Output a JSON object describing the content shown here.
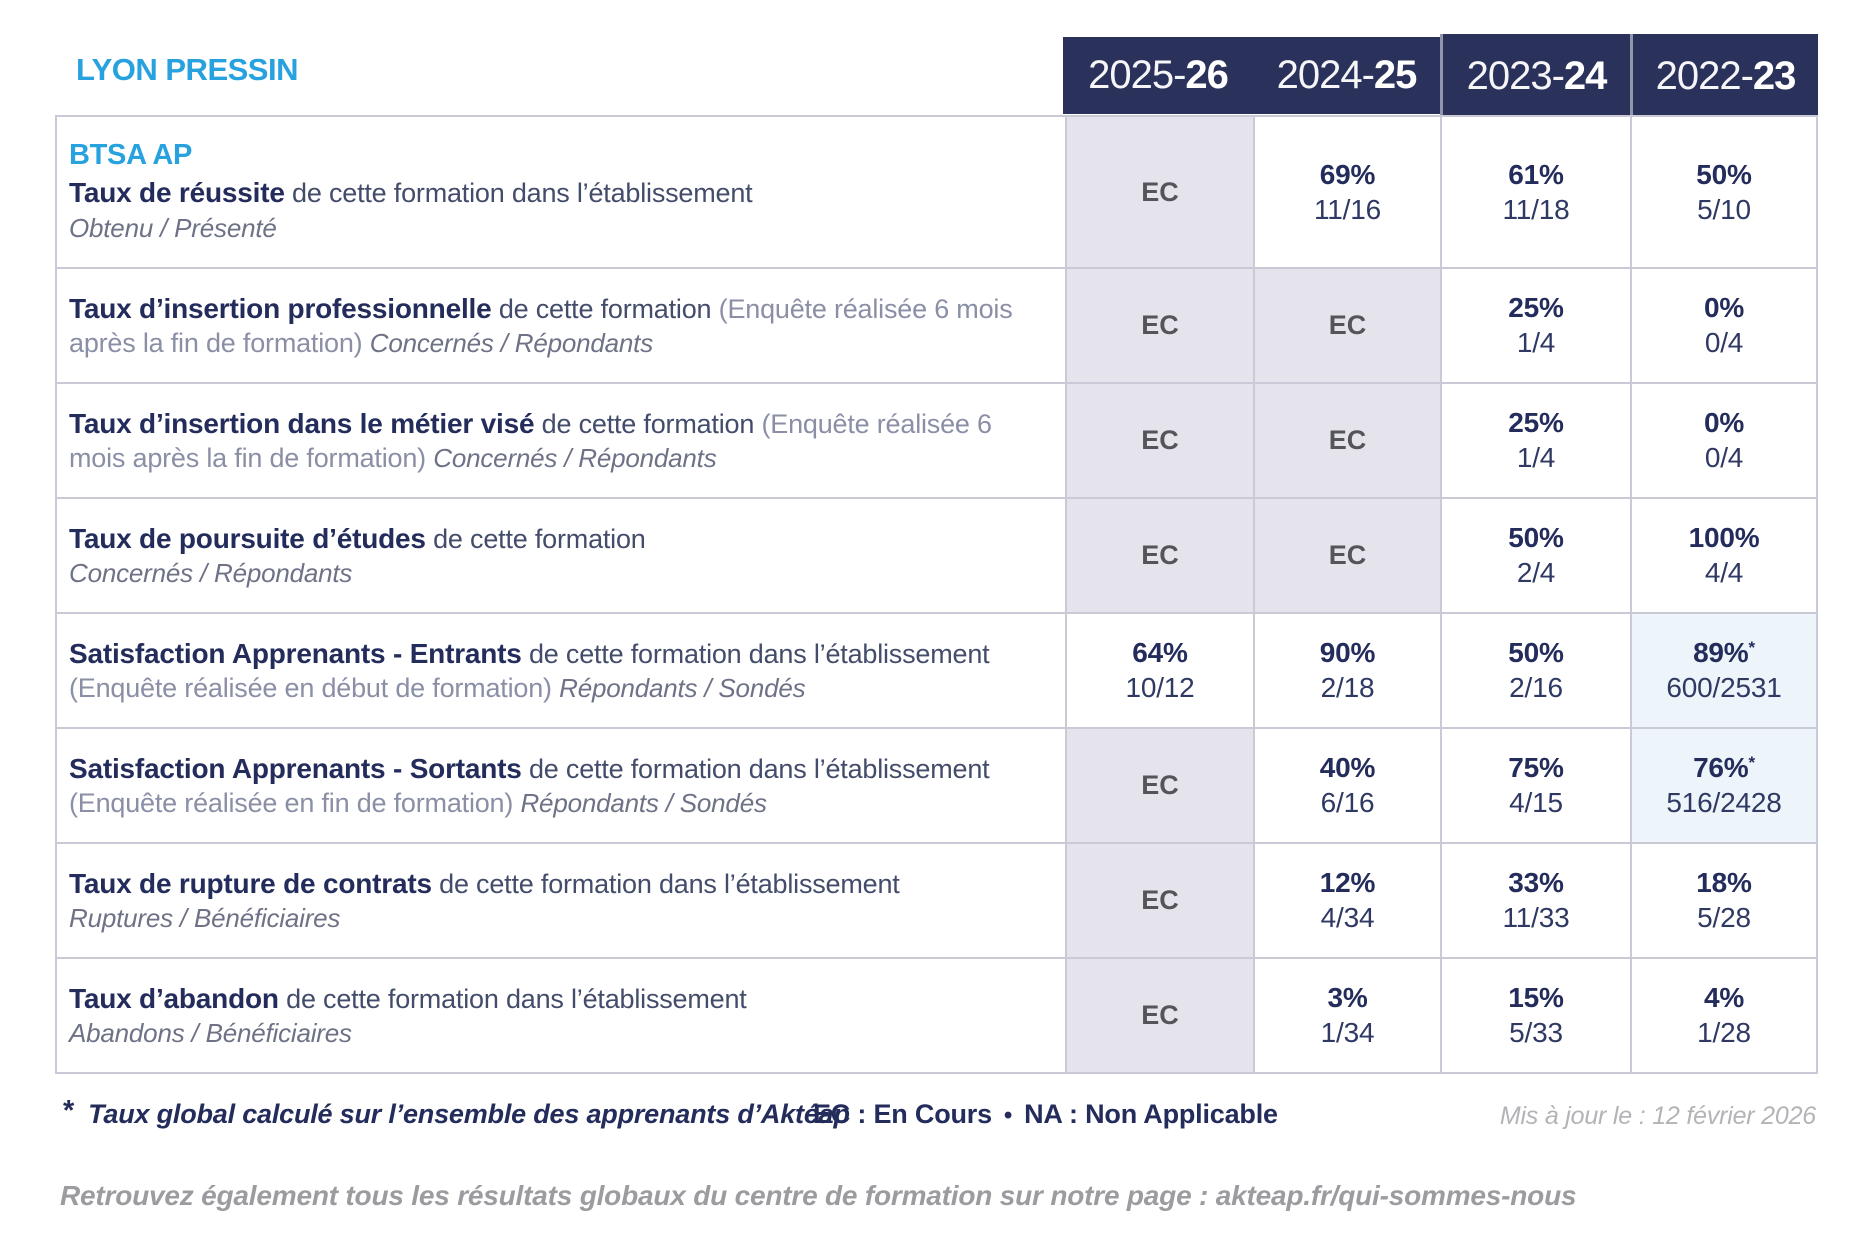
{
  "site": "LYON PRESSIN",
  "columns": [
    {
      "start": "2025-",
      "end": "26"
    },
    {
      "start": "2024-",
      "end": "25"
    },
    {
      "start": "2023-",
      "end": "24"
    },
    {
      "start": "2022-",
      "end": "23"
    }
  ],
  "rows": [
    {
      "program": "BTSA AP",
      "segments": [
        {
          "t": "Taux de réussite",
          "s": "title"
        },
        {
          "t": "de cette formation dans l’établissement",
          "s": "normal"
        },
        {
          "t": "Obtenu / Présenté",
          "s": "italic",
          "br": true
        }
      ],
      "values": [
        {
          "ec": "EC"
        },
        {
          "pct": "69%",
          "frac": "11/16"
        },
        {
          "pct": "61%",
          "frac": "11/18"
        },
        {
          "pct": "50%",
          "frac": "5/10"
        }
      ]
    },
    {
      "segments": [
        {
          "t": "Taux d’insertion professionnelle",
          "s": "title"
        },
        {
          "t": "de cette formation",
          "s": "normal"
        },
        {
          "t": "(Enquête réalisée 6 mois après la fin de formation)",
          "s": "paren"
        },
        {
          "t": "Concernés / Répondants",
          "s": "italic"
        }
      ],
      "values": [
        {
          "ec": "EC"
        },
        {
          "ec": "EC"
        },
        {
          "pct": "25%",
          "frac": "1/4"
        },
        {
          "pct": "0%",
          "frac": "0/4"
        }
      ]
    },
    {
      "segments": [
        {
          "t": "Taux d’insertion dans le métier visé",
          "s": "title"
        },
        {
          "t": "de cette formation",
          "s": "normal"
        },
        {
          "t": "(Enquête réalisée 6 mois après la fin de formation)",
          "s": "paren"
        },
        {
          "t": "Concernés / Répondants",
          "s": "italic"
        }
      ],
      "values": [
        {
          "ec": "EC"
        },
        {
          "ec": "EC"
        },
        {
          "pct": "25%",
          "frac": "1/4"
        },
        {
          "pct": "0%",
          "frac": "0/4"
        }
      ]
    },
    {
      "segments": [
        {
          "t": "Taux de poursuite d’études",
          "s": "title"
        },
        {
          "t": "de cette formation",
          "s": "normal"
        },
        {
          "t": "Concernés / Répondants",
          "s": "italic",
          "br": true
        }
      ],
      "values": [
        {
          "ec": "EC"
        },
        {
          "ec": "EC"
        },
        {
          "pct": "50%",
          "frac": "2/4"
        },
        {
          "pct": "100%",
          "frac": "4/4"
        }
      ]
    },
    {
      "segments": [
        {
          "t": "Satisfaction Apprenants - Entrants",
          "s": "title"
        },
        {
          "t": "de cette formation dans l’établissement",
          "s": "normal"
        },
        {
          "t": "(Enquête réalisée en début de formation)",
          "s": "paren"
        },
        {
          "t": "Répondants / Sondés",
          "s": "italic"
        }
      ],
      "values": [
        {
          "pct": "64%",
          "frac": "10/12"
        },
        {
          "pct": "90%",
          "frac": "2/18"
        },
        {
          "pct": "50%",
          "frac": "2/16"
        },
        {
          "pct": "89%",
          "frac": "600/2531",
          "star": true,
          "highlight": true
        }
      ]
    },
    {
      "segments": [
        {
          "t": "Satisfaction Apprenants - Sortants",
          "s": "title"
        },
        {
          "t": "de cette formation dans l’établissement",
          "s": "normal"
        },
        {
          "t": "(Enquête réalisée en fin de formation)",
          "s": "paren"
        },
        {
          "t": "Répondants / Sondés",
          "s": "italic"
        }
      ],
      "values": [
        {
          "ec": "EC"
        },
        {
          "pct": "40%",
          "frac": "6/16"
        },
        {
          "pct": "75%",
          "frac": "4/15"
        },
        {
          "pct": "76%",
          "frac": "516/2428",
          "star": true,
          "highlight": true
        }
      ]
    },
    {
      "segments": [
        {
          "t": "Taux de rupture de contrats",
          "s": "title"
        },
        {
          "t": "de cette formation dans l’établissement",
          "s": "normal"
        },
        {
          "t": "Ruptures / Bénéficiaires",
          "s": "italic",
          "br": true
        }
      ],
      "values": [
        {
          "ec": "EC"
        },
        {
          "pct": "12%",
          "frac": "4/34"
        },
        {
          "pct": "33%",
          "frac": "11/33"
        },
        {
          "pct": "18%",
          "frac": "5/28"
        }
      ]
    },
    {
      "segments": [
        {
          "t": "Taux d’abandon",
          "s": "title"
        },
        {
          "t": "de cette formation dans l’établissement",
          "s": "normal"
        },
        {
          "t": "Abandons / Bénéficiaires",
          "s": "italic",
          "br": true
        }
      ],
      "values": [
        {
          "ec": "EC"
        },
        {
          "pct": "3%",
          "frac": "1/34"
        },
        {
          "pct": "15%",
          "frac": "5/33"
        },
        {
          "pct": "4%",
          "frac": "1/28"
        }
      ]
    }
  ],
  "footer": {
    "star": "*",
    "note": "Taux global calculé sur l’ensemble des apprenants d’Aktéap",
    "legend_ec": "EC : En Cours",
    "legend_sep": "•",
    "legend_na": "NA : Non Applicable",
    "updated": "Mis à jour le : 12 février 2026",
    "link_note": "Retrouvez également tous les résultats globaux du centre de formation sur notre page : akteap.fr/qui-sommes-nous"
  },
  "colors": {
    "navy_text": "#232C5B",
    "header_background": "#2A315B",
    "accent_blue": "#27A2DE",
    "ec_cell_background": "#E5E4ED",
    "highlight_cell_background": "#EDF4FA",
    "border": "#C9CAD6"
  }
}
